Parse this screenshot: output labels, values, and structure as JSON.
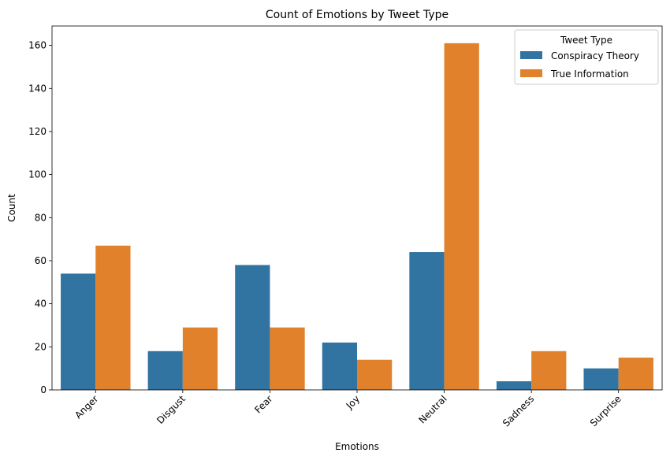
{
  "chart_data": {
    "type": "bar",
    "title": "Count of Emotions by Tweet Type",
    "xlabel": "Emotions",
    "ylabel": "Count",
    "categories": [
      "Anger",
      "Disgust",
      "Fear",
      "Joy",
      "Neutral",
      "Sadness",
      "Surprise"
    ],
    "series": [
      {
        "name": "Conspiracy Theory",
        "color": "#3274a1",
        "values": [
          54,
          18,
          58,
          22,
          64,
          4,
          10
        ]
      },
      {
        "name": "True Information",
        "color": "#e1812c",
        "values": [
          67,
          29,
          29,
          14,
          161,
          18,
          15
        ]
      }
    ],
    "ylim": [
      0,
      169
    ],
    "yticks": [
      0,
      20,
      40,
      60,
      80,
      100,
      120,
      140,
      160
    ],
    "grid": false,
    "legend": {
      "title": "Tweet Type",
      "placement": "top-right"
    }
  }
}
